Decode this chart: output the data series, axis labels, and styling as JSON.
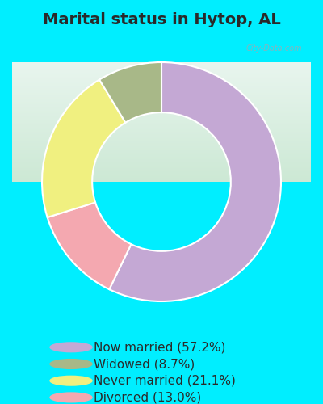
{
  "title": "Marital status in Hytop, AL",
  "slices": [
    57.2,
    13.0,
    21.1,
    8.7
  ],
  "colors": [
    "#c4a8d4",
    "#f4a8b0",
    "#f0f080",
    "#a8b888"
  ],
  "labels": [
    "Now married (57.2%)",
    "Widowed (8.7%)",
    "Never married (21.1%)",
    "Divorced (13.0%)"
  ],
  "legend_colors": [
    "#c4a8d4",
    "#a8b888",
    "#f0f080",
    "#f4a8b0"
  ],
  "outer_bg": "#00eeff",
  "chart_bg_top": "#e8f5ee",
  "chart_bg_bottom": "#d0ecd8",
  "title_color": "#2a2a2a",
  "title_fontsize": 14,
  "legend_fontsize": 11,
  "donut_width": 0.42,
  "startangle": 90,
  "watermark": "City-Data.com"
}
